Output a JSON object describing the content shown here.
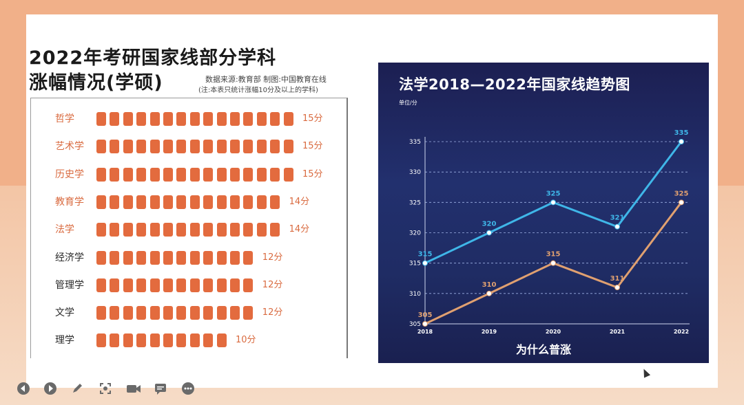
{
  "left_panel": {
    "title_line1": "2022年考研国家线部分学科",
    "title_line2": "涨幅情况(学硕)",
    "source_text": "数据来源:教育部  制图:中国教育在线",
    "note_text": "(注:本表只统计涨幅10分及以上的学科)",
    "rows": [
      {
        "label": "哲学",
        "value": "15分",
        "segments": 15,
        "style": "orange"
      },
      {
        "label": "艺术学",
        "value": "15分",
        "segments": 15,
        "style": "orange"
      },
      {
        "label": "历史学",
        "value": "15分",
        "segments": 15,
        "style": "orange"
      },
      {
        "label": "教育学",
        "value": "14分",
        "segments": 14,
        "style": "orange"
      },
      {
        "label": "法学",
        "value": "14分",
        "segments": 14,
        "style": "orange"
      },
      {
        "label": "经济学",
        "value": "12分",
        "segments": 12,
        "style": "dark"
      },
      {
        "label": "管理学",
        "value": "12分",
        "segments": 12,
        "style": "dark"
      },
      {
        "label": "文学",
        "value": "12分",
        "segments": 12,
        "style": "dark"
      },
      {
        "label": "理学",
        "value": "10分",
        "segments": 10,
        "style": "dark"
      }
    ]
  },
  "right_panel": {
    "title": "法学2018—2022年国家线趋势图",
    "unit": "单位/分",
    "bottom_caption": "为什么普涨"
  },
  "chart_data": {
    "type": "line",
    "x": [
      "2018",
      "2019",
      "2020",
      "2021",
      "2022"
    ],
    "ylim": [
      305,
      335
    ],
    "yticks": [
      "305",
      "310",
      "315",
      "320",
      "325",
      "330",
      "335"
    ],
    "series": [
      {
        "values": [
          315,
          320,
          325,
          321,
          335
        ],
        "labels": [
          "315",
          "320",
          "325",
          "321",
          "335"
        ],
        "color": "#3fb6e8"
      },
      {
        "values": [
          305,
          310,
          315,
          311,
          325
        ],
        "labels": [
          "305",
          "310",
          "315",
          "311",
          "325"
        ],
        "color": "#e0a070"
      }
    ],
    "grid": true
  },
  "toolbar": {
    "icons": [
      "prev-icon",
      "next-icon",
      "pen-icon",
      "screenshot-icon",
      "camera-icon",
      "chat-icon",
      "more-icon"
    ]
  }
}
